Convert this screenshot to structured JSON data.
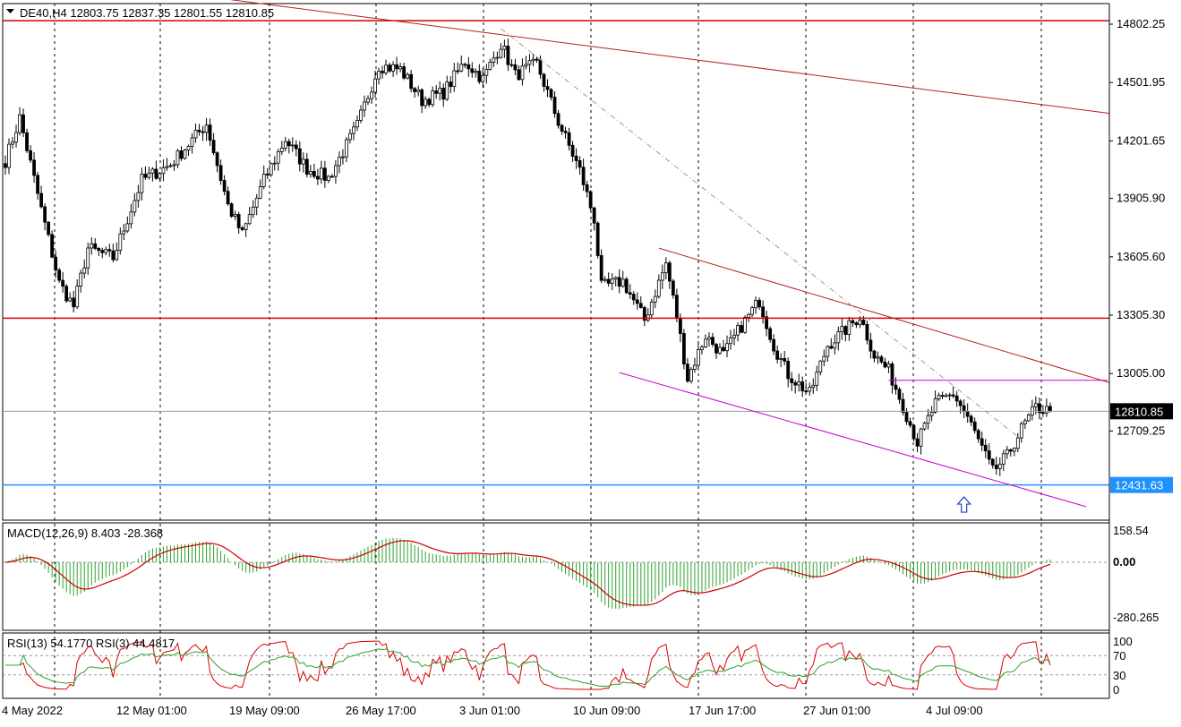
{
  "header": {
    "symbol": "DE40,H4",
    "open": "12803.75",
    "high": "12837.35",
    "low": "12801.55",
    "close": "12810.85"
  },
  "chart_data": [
    {
      "type": "candlestick",
      "panel": "price",
      "yticks": [
        {
          "value": 14802.25,
          "label": "14802.25"
        },
        {
          "value": 14501.95,
          "label": "14501.95"
        },
        {
          "value": 14201.65,
          "label": "14201.65"
        },
        {
          "value": 13905.9,
          "label": "13905.90"
        },
        {
          "value": 13605.6,
          "label": "13605.60"
        },
        {
          "value": 13305.3,
          "label": "13305.30"
        },
        {
          "value": 13005.0,
          "label": "13005.00"
        },
        {
          "value": 12709.25,
          "label": "12709.25"
        }
      ],
      "current_price": {
        "value": 12810.85,
        "label": "12810.85"
      },
      "blue_line_price": {
        "value": 12431.63,
        "label": "12431.63"
      },
      "horizontal_levels": [
        {
          "value": 14820,
          "color": "#cc0000"
        },
        {
          "value": 13290,
          "color": "#e00000"
        },
        {
          "value": 12431.63,
          "color": "#1e90ff"
        }
      ],
      "anchors": [
        {
          "bar": 0,
          "price": 14100
        },
        {
          "bar": 4,
          "price": 14320
        },
        {
          "bar": 10,
          "price": 13850
        },
        {
          "bar": 15,
          "price": 13470
        },
        {
          "bar": 19,
          "price": 13350
        },
        {
          "bar": 23,
          "price": 13650
        },
        {
          "bar": 30,
          "price": 13600
        },
        {
          "bar": 38,
          "price": 14000
        },
        {
          "bar": 46,
          "price": 14080
        },
        {
          "bar": 56,
          "price": 14290
        },
        {
          "bar": 62,
          "price": 13870
        },
        {
          "bar": 66,
          "price": 13720
        },
        {
          "bar": 72,
          "price": 14000
        },
        {
          "bar": 78,
          "price": 14210
        },
        {
          "bar": 84,
          "price": 14060
        },
        {
          "bar": 90,
          "price": 14010
        },
        {
          "bar": 98,
          "price": 14280
        },
        {
          "bar": 104,
          "price": 14590
        },
        {
          "bar": 110,
          "price": 14570
        },
        {
          "bar": 116,
          "price": 14410
        },
        {
          "bar": 122,
          "price": 14450
        },
        {
          "bar": 128,
          "price": 14610
        },
        {
          "bar": 133,
          "price": 14520
        },
        {
          "bar": 138,
          "price": 14700
        },
        {
          "bar": 142,
          "price": 14540
        },
        {
          "bar": 148,
          "price": 14600
        },
        {
          "bar": 154,
          "price": 14300
        },
        {
          "bar": 160,
          "price": 14050
        },
        {
          "bar": 164,
          "price": 13800
        },
        {
          "bar": 166,
          "price": 13450
        },
        {
          "bar": 172,
          "price": 13480
        },
        {
          "bar": 178,
          "price": 13280
        },
        {
          "bar": 184,
          "price": 13570
        },
        {
          "bar": 187,
          "price": 13300
        },
        {
          "bar": 190,
          "price": 12980
        },
        {
          "bar": 195,
          "price": 13200
        },
        {
          "bar": 200,
          "price": 13100
        },
        {
          "bar": 205,
          "price": 13250
        },
        {
          "bar": 210,
          "price": 13380
        },
        {
          "bar": 214,
          "price": 13150
        },
        {
          "bar": 218,
          "price": 13000
        },
        {
          "bar": 224,
          "price": 12900
        },
        {
          "bar": 229,
          "price": 13150
        },
        {
          "bar": 234,
          "price": 13230
        },
        {
          "bar": 238,
          "price": 13300
        },
        {
          "bar": 242,
          "price": 13100
        },
        {
          "bar": 246,
          "price": 13020
        },
        {
          "bar": 250,
          "price": 12840
        },
        {
          "bar": 254,
          "price": 12650
        },
        {
          "bar": 259,
          "price": 12850
        },
        {
          "bar": 264,
          "price": 12900
        },
        {
          "bar": 268,
          "price": 12780
        },
        {
          "bar": 272,
          "price": 12620
        },
        {
          "bar": 275,
          "price": 12500
        },
        {
          "bar": 279,
          "price": 12580
        },
        {
          "bar": 283,
          "price": 12720
        },
        {
          "bar": 287,
          "price": 12830
        },
        {
          "bar": 291,
          "price": 12810
        }
      ],
      "trendlines": [
        {
          "from": {
            "bar": 62,
            "price": 14930
          },
          "to": {
            "bar": 309,
            "price": 14340
          },
          "color": "#b22222"
        },
        {
          "from": {
            "bar": 182,
            "price": 13650
          },
          "to": {
            "bar": 309,
            "price": 12950
          },
          "color": "#b22222"
        },
        {
          "from": {
            "bar": 171,
            "price": 13010
          },
          "to": {
            "bar": 301,
            "price": 12320
          },
          "color": "#cc00cc"
        },
        {
          "from": {
            "bar": 246,
            "price": 12970
          },
          "to": {
            "bar": 307,
            "price": 12970
          },
          "color": "#cc00cc"
        },
        {
          "from": {
            "bar": 138,
            "price": 14780
          },
          "to": {
            "bar": 282,
            "price": 12680
          },
          "color": "#999999",
          "dashed": true
        }
      ],
      "arrow_marker": {
        "bar": 267,
        "price": 12370,
        "symbol": "up-arrow"
      }
    },
    {
      "type": "histogram+line",
      "panel": "macd",
      "label": "MACD(12,26,9) 8.403 -28.368",
      "yticks": [
        {
          "value": 158.54,
          "label": "158.54"
        },
        {
          "value": 0.0,
          "label": "0.00"
        },
        {
          "value": -280.265,
          "label": "-280.265"
        }
      ],
      "histogram_color": "#2ea02e",
      "signal_color": "#cc0000"
    },
    {
      "type": "line",
      "panel": "rsi",
      "label": "RSI(13) 54.1770  RSI(3) 44.4817",
      "yticks": [
        {
          "value": 100,
          "label": "100"
        },
        {
          "value": 70,
          "label": "70"
        },
        {
          "value": 30,
          "label": "30"
        },
        {
          "value": 0,
          "label": "0"
        }
      ],
      "levels": [
        70,
        30
      ],
      "series": [
        {
          "name": "RSI(13)",
          "color": "#2ea02e"
        },
        {
          "name": "RSI(3)",
          "color": "#dd0000"
        }
      ]
    }
  ],
  "x_axis": {
    "labels": [
      "4 May 2022",
      "12 May 01:00",
      "19 May 09:00",
      "26 May 17:00",
      "3 Jun 01:00",
      "10 Jun 09:00",
      "17 Jun 17:00",
      "27 Jun 01:00",
      "4 Jul 09:00"
    ],
    "label_bars": [
      0,
      44,
      88,
      132,
      176,
      220,
      264,
      308,
      352
    ]
  },
  "colors": {
    "up_candle": "#000000",
    "down_candle": "#000000",
    "grid": "#000000"
  }
}
